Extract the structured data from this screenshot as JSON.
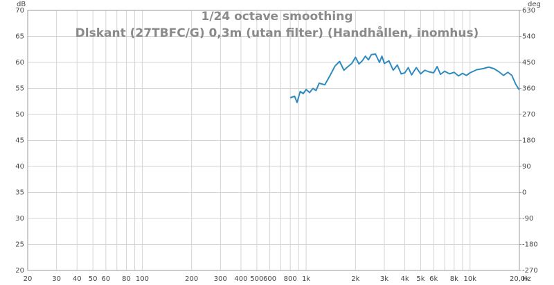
{
  "chart_data": {
    "type": "line",
    "title": "1/24 octave smoothing",
    "subtitle": "Dlskant (27TBFC/G) 0,3m (utan filter) (Handhållen, inomhus)",
    "y_unit": "dB",
    "y2_unit": "deg",
    "x_unit": "Hz",
    "xscale": "log",
    "grid": true,
    "xlim": [
      20,
      20000
    ],
    "xticks": [
      20,
      30,
      40,
      50,
      60,
      80,
      100,
      200,
      300,
      400,
      500,
      600,
      800,
      {
        "value": 1000,
        "label": "1k"
      },
      {
        "value": 2000,
        "label": "2k"
      },
      {
        "value": 3000,
        "label": "3k"
      },
      {
        "value": 4000,
        "label": "4k"
      },
      {
        "value": 5000,
        "label": "5k"
      },
      {
        "value": 6000,
        "label": "6k"
      },
      {
        "value": 8000,
        "label": "8k"
      },
      {
        "value": 10000,
        "label": "10k"
      },
      {
        "value": 20000,
        "label": "20,0k"
      }
    ],
    "xminor_gridlines": [
      70,
      90,
      700,
      900,
      7000,
      9000
    ],
    "ylim": [
      20,
      70
    ],
    "yticks": [
      20,
      25,
      30,
      35,
      40,
      45,
      50,
      55,
      60,
      65,
      70
    ],
    "y2lim": [
      -270,
      630
    ],
    "y2ticks": [
      -270,
      -180,
      -90,
      0,
      90,
      180,
      270,
      360,
      450,
      540,
      630
    ],
    "color": "#2f8bbf",
    "x": [
      800,
      850,
      880,
      920,
      960,
      1000,
      1050,
      1100,
      1150,
      1200,
      1300,
      1400,
      1500,
      1600,
      1700,
      1800,
      1900,
      2000,
      2100,
      2200,
      2300,
      2400,
      2500,
      2650,
      2800,
      2900,
      3000,
      3200,
      3400,
      3600,
      3800,
      4000,
      4200,
      4400,
      4700,
      5000,
      5300,
      5600,
      6000,
      6300,
      6600,
      7000,
      7500,
      8000,
      8500,
      9000,
      9500,
      10000,
      11000,
      12000,
      13000,
      14000,
      15000,
      16000,
      17000,
      18000,
      19000,
      20000
    ],
    "values": [
      53.2,
      53.5,
      52.3,
      54.4,
      54.0,
      54.8,
      54.2,
      55.0,
      54.6,
      56.0,
      55.7,
      57.5,
      59.3,
      60.2,
      58.5,
      59.2,
      59.8,
      61.0,
      59.7,
      60.3,
      61.2,
      60.5,
      61.5,
      61.6,
      60.0,
      61.2,
      59.8,
      60.3,
      58.5,
      59.5,
      57.8,
      58.0,
      59.0,
      57.6,
      59.0,
      57.8,
      58.5,
      58.2,
      58.0,
      59.2,
      57.7,
      58.3,
      57.8,
      58.1,
      57.4,
      57.9,
      57.5,
      58.0,
      58.6,
      58.8,
      59.1,
      58.8,
      58.2,
      57.5,
      58.1,
      57.5,
      55.8,
      54.7
    ]
  }
}
